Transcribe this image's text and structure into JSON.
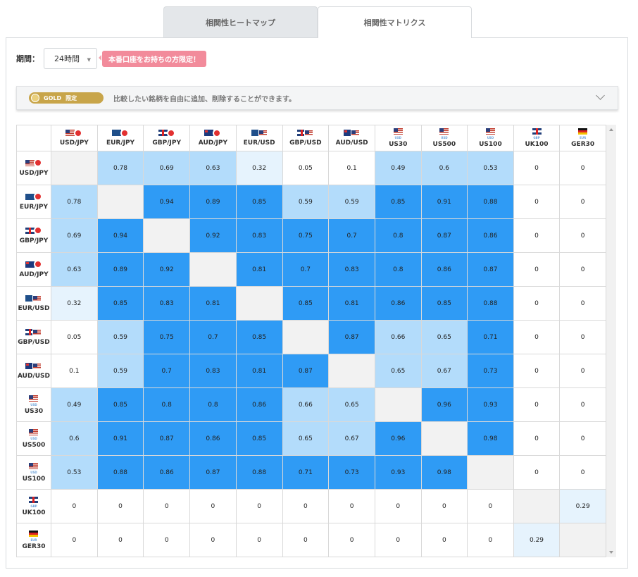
{
  "tabs": [
    {
      "label": "相関性ヒートマップ",
      "active": false
    },
    {
      "label": "相関性マトリクス",
      "active": true
    }
  ],
  "filter": {
    "period_label": "期間：",
    "period_value": "24時間",
    "promo_label": "本番口座をお持ちの方限定！"
  },
  "gold": {
    "badge_gold": "GOLD",
    "badge_limited": "限定",
    "text": "比較したい銘柄を自由に追加、削除することができます。"
  },
  "colors": {
    "strong": "#2f9bf5",
    "medium": "#b3dcfb",
    "weak": "#e6f3fd",
    "none": "#ffffff",
    "diagonal": "#f2f2f2"
  },
  "matrix": {
    "symbols": [
      {
        "label": "USD/JPY",
        "flags": [
          "us",
          "jp"
        ],
        "sub": ""
      },
      {
        "label": "EUR/JPY",
        "flags": [
          "eu",
          "jp"
        ],
        "sub": ""
      },
      {
        "label": "GBP/JPY",
        "flags": [
          "uk",
          "jp"
        ],
        "sub": ""
      },
      {
        "label": "AUD/JPY",
        "flags": [
          "au",
          "jp"
        ],
        "sub": ""
      },
      {
        "label": "EUR/USD",
        "flags": [
          "eu",
          "us"
        ],
        "sub": ""
      },
      {
        "label": "GBP/USD",
        "flags": [
          "uk",
          "us"
        ],
        "sub": ""
      },
      {
        "label": "AUD/USD",
        "flags": [
          "au",
          "us"
        ],
        "sub": ""
      },
      {
        "label": "US30",
        "flags": [
          "us"
        ],
        "sub": "USD"
      },
      {
        "label": "US500",
        "flags": [
          "us"
        ],
        "sub": "USD"
      },
      {
        "label": "US100",
        "flags": [
          "us"
        ],
        "sub": "USD"
      },
      {
        "label": "UK100",
        "flags": [
          "uk"
        ],
        "sub": "GBP"
      },
      {
        "label": "GER30",
        "flags": [
          "de"
        ],
        "sub": "EUR"
      }
    ],
    "values": [
      [
        "",
        "0.78",
        "0.69",
        "0.63",
        "0.32",
        "0.05",
        "0.1",
        "0.49",
        "0.6",
        "0.53",
        "0",
        "0"
      ],
      [
        "0.78",
        "",
        "0.94",
        "0.89",
        "0.85",
        "0.59",
        "0.59",
        "0.85",
        "0.91",
        "0.88",
        "0",
        "0"
      ],
      [
        "0.69",
        "0.94",
        "",
        "0.92",
        "0.83",
        "0.75",
        "0.7",
        "0.8",
        "0.87",
        "0.86",
        "0",
        "0"
      ],
      [
        "0.63",
        "0.89",
        "0.92",
        "",
        "0.81",
        "0.7",
        "0.83",
        "0.8",
        "0.86",
        "0.87",
        "0",
        "0"
      ],
      [
        "0.32",
        "0.85",
        "0.83",
        "0.81",
        "",
        "0.85",
        "0.81",
        "0.86",
        "0.85",
        "0.88",
        "0",
        "0"
      ],
      [
        "0.05",
        "0.59",
        "0.75",
        "0.7",
        "0.85",
        "",
        "0.87",
        "0.66",
        "0.65",
        "0.71",
        "0",
        "0"
      ],
      [
        "0.1",
        "0.59",
        "0.7",
        "0.83",
        "0.81",
        "0.87",
        "",
        "0.65",
        "0.67",
        "0.73",
        "0",
        "0"
      ],
      [
        "0.49",
        "0.85",
        "0.8",
        "0.8",
        "0.86",
        "0.66",
        "0.65",
        "",
        "0.96",
        "0.93",
        "0",
        "0"
      ],
      [
        "0.6",
        "0.91",
        "0.87",
        "0.86",
        "0.85",
        "0.65",
        "0.67",
        "0.96",
        "",
        "0.98",
        "0",
        "0"
      ],
      [
        "0.53",
        "0.88",
        "0.86",
        "0.87",
        "0.88",
        "0.71",
        "0.73",
        "0.93",
        "0.98",
        "",
        "0",
        "0"
      ],
      [
        "0",
        "0",
        "0",
        "0",
        "0",
        "0",
        "0",
        "0",
        "0",
        "0",
        "",
        "0.29"
      ],
      [
        "0",
        "0",
        "0",
        "0",
        "0",
        "0",
        "0",
        "0",
        "0",
        "0",
        "0.29",
        ""
      ]
    ]
  }
}
